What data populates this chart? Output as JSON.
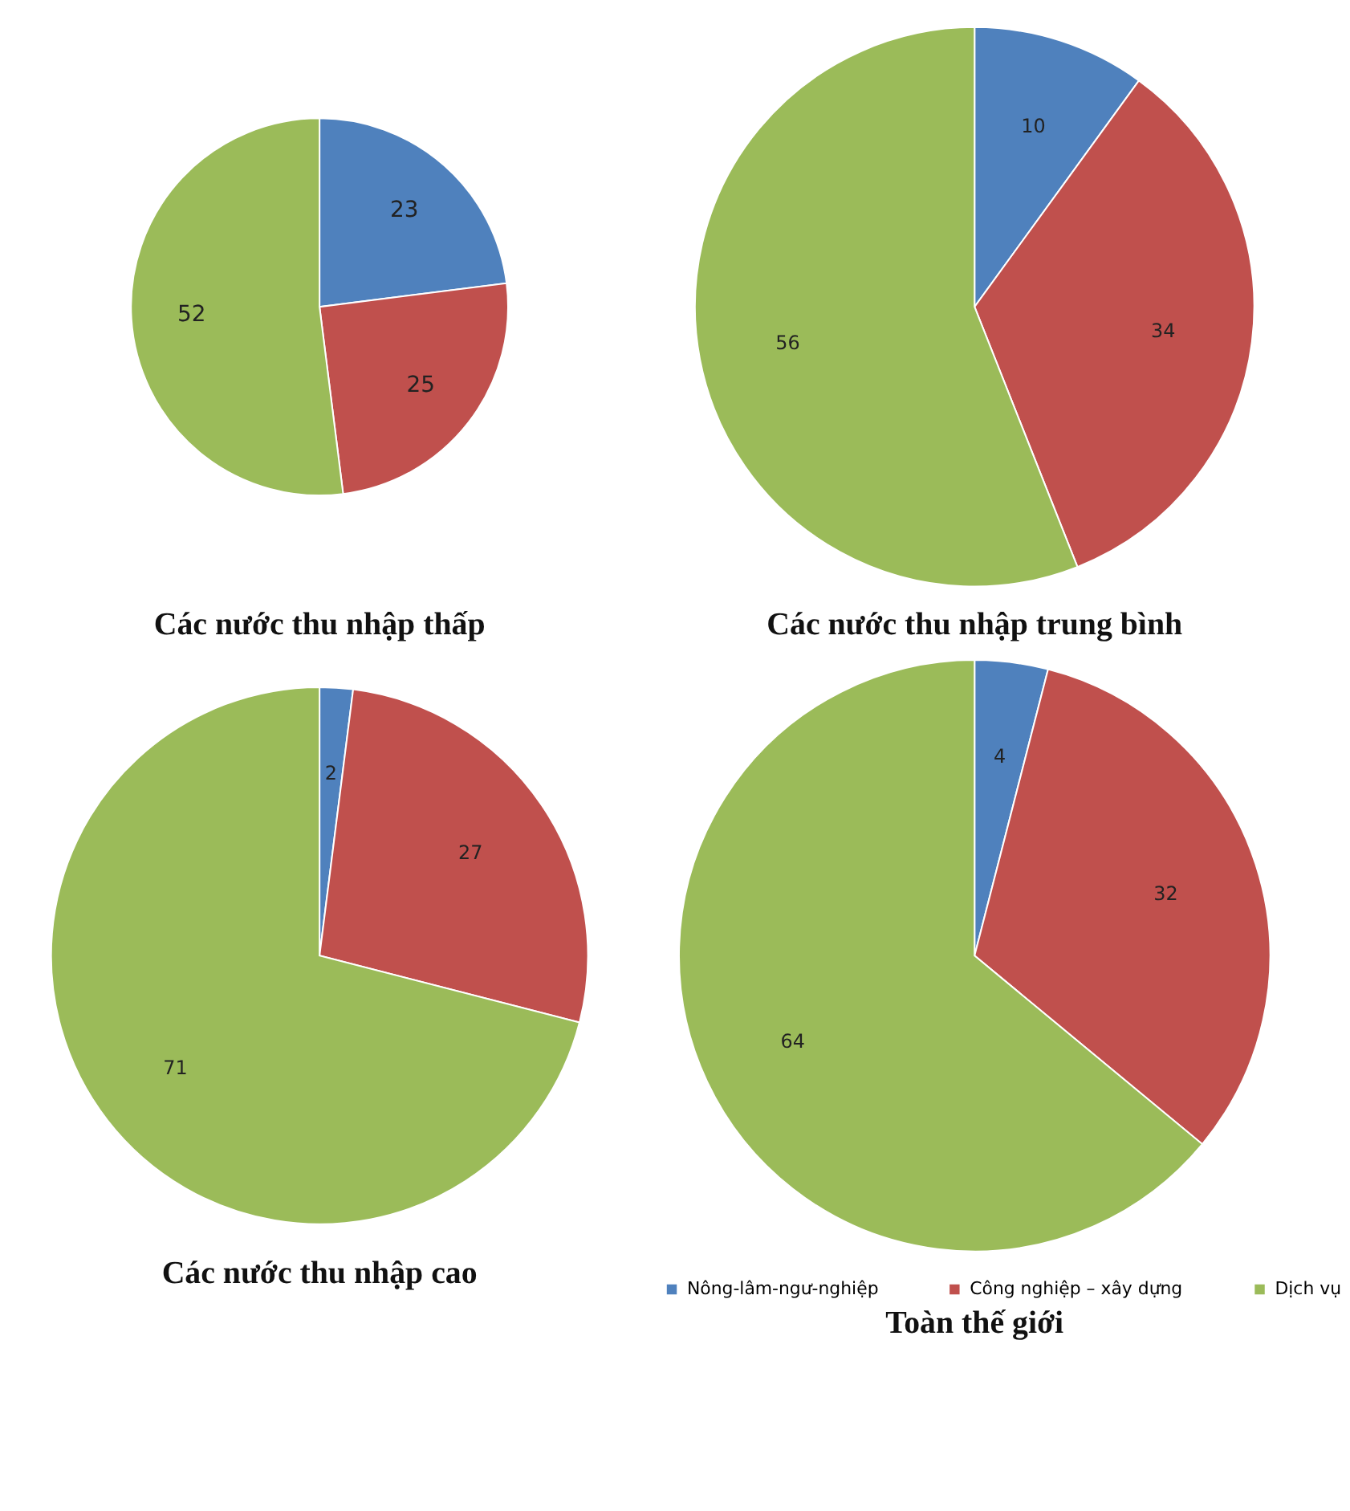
{
  "chart_data": [
    {
      "type": "pie",
      "title": "Các nước thu nhập thấp",
      "categories": [
        null,
        null,
        null
      ],
      "values": [
        23,
        25,
        52
      ],
      "colors": [
        "#4f81bd",
        "#c0504d",
        "#9bbb59"
      ],
      "data_labels": true
    },
    {
      "type": "pie",
      "title": "Các nước thu nhập trung bình",
      "categories": [
        null,
        null,
        null
      ],
      "values": [
        10,
        34,
        56
      ],
      "colors": [
        "#4f81bd",
        "#c0504d",
        "#9bbb59"
      ],
      "data_labels": true
    },
    {
      "type": "pie",
      "title": "Các nước thu nhập cao",
      "categories": [
        null,
        null,
        null
      ],
      "values": [
        2,
        27,
        71
      ],
      "colors": [
        "#4f81bd",
        "#c0504d",
        "#9bbb59"
      ],
      "data_labels": true
    },
    {
      "type": "pie",
      "title": "Toàn thế giới",
      "categories": [
        "Nông-lâm-ngư-nghiệp",
        "Công nghiệp – xây dựng",
        "Dịch vụ"
      ],
      "values": [
        4,
        32,
        64
      ],
      "colors": [
        "#4f81bd",
        "#c0504d",
        "#9bbb59"
      ],
      "data_labels": true,
      "legend": "bottom"
    }
  ]
}
